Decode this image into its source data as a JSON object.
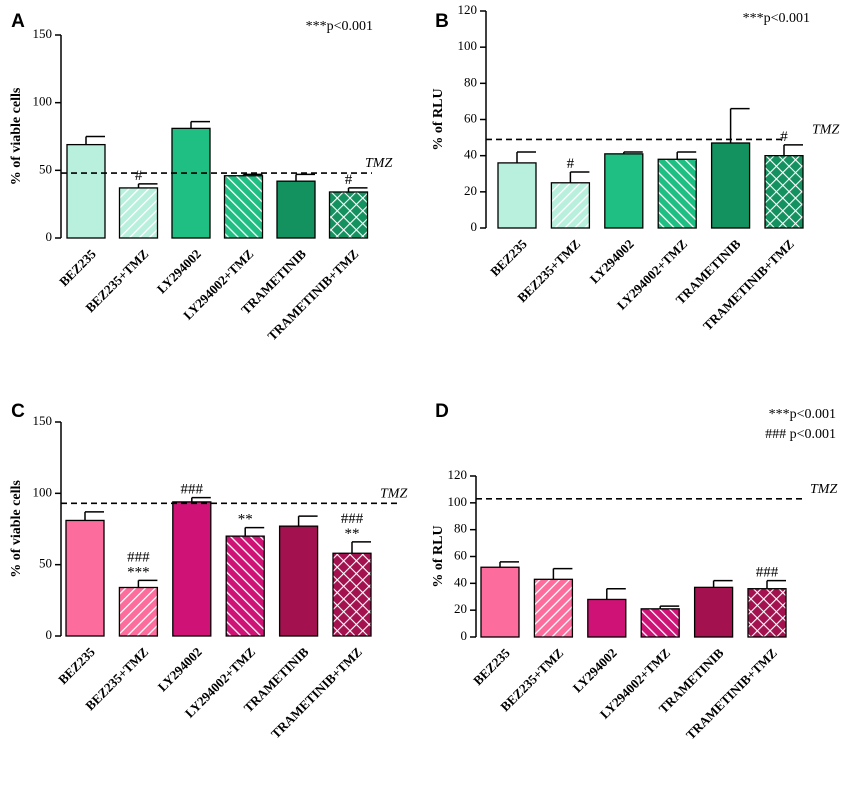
{
  "chart_data": [
    {
      "type": "bar",
      "panel": "A",
      "title": "",
      "xlabel": "",
      "ylabel": "% of viable cells",
      "ylim": [
        0,
        150
      ],
      "yticks": [
        0,
        50,
        100,
        150
      ],
      "categories": [
        "BEZ235",
        "BEZ235+TMZ",
        "LY294002",
        "LY294002+TMZ",
        "TRAMETINIB",
        "TRAMETINIB+TMZ"
      ],
      "values": [
        69,
        37,
        81,
        46,
        42,
        34
      ],
      "errors": [
        6,
        3,
        5,
        1,
        5,
        3
      ],
      "patterns": [
        "solid",
        "diag-left",
        "solid",
        "diag-right",
        "solid",
        "crosshatch"
      ],
      "colors": [
        "#b8f0dd",
        "#b8f0dd",
        "#1fbf83",
        "#1fbf83",
        "#13915f",
        "#13915f"
      ],
      "significance": [
        "",
        "#",
        "",
        "",
        "",
        "#"
      ],
      "reference_line": {
        "label": "TMZ",
        "value": 48
      },
      "annotations": [
        "***p<0.001"
      ]
    },
    {
      "type": "bar",
      "panel": "B",
      "title": "",
      "xlabel": "",
      "ylabel": "% of RLU",
      "ylim": [
        0,
        120
      ],
      "yticks": [
        0,
        20,
        40,
        60,
        80,
        100,
        120
      ],
      "categories": [
        "BEZ235",
        "BEZ235+TMZ",
        "LY294002",
        "LY294002+TMZ",
        "TRAMETINIB",
        "TRAMETINIB+TMZ"
      ],
      "values": [
        36,
        25,
        41,
        38,
        47,
        40
      ],
      "errors": [
        6,
        6,
        1,
        4,
        19,
        6
      ],
      "patterns": [
        "solid",
        "diag-left",
        "solid",
        "diag-right",
        "solid",
        "crosshatch"
      ],
      "colors": [
        "#b8f0dd",
        "#b8f0dd",
        "#1fbf83",
        "#1fbf83",
        "#13915f",
        "#13915f"
      ],
      "significance": [
        "",
        "#",
        "",
        "",
        "",
        "#"
      ],
      "reference_line": {
        "label": "TMZ",
        "value": 49
      },
      "annotations": [
        "***p<0.001"
      ]
    },
    {
      "type": "bar",
      "panel": "C",
      "title": "",
      "xlabel": "",
      "ylabel": "% of viable cells",
      "ylim": [
        0,
        150
      ],
      "yticks": [
        0,
        50,
        100,
        150
      ],
      "categories": [
        "BEZ235",
        "BEZ235+TMZ",
        "LY294002",
        "LY294002+TMZ",
        "TRAMETINIB",
        "TRAMETINIB+TMZ"
      ],
      "values": [
        81,
        34,
        94,
        70,
        77,
        58
      ],
      "errors": [
        6,
        5,
        3,
        6,
        7,
        8
      ],
      "patterns": [
        "solid",
        "diag-left",
        "solid",
        "diag-right",
        "solid",
        "crosshatch"
      ],
      "colors": [
        "#fc6c9c",
        "#fc6c9c",
        "#cf1276",
        "#cf1276",
        "#a3124f",
        "#a3124f"
      ],
      "significance": [
        "",
        "###\n***",
        "###",
        "**",
        "",
        "###\n**"
      ],
      "reference_line": {
        "label": "TMZ",
        "value": 93
      },
      "annotations": []
    },
    {
      "type": "bar",
      "panel": "D",
      "title": "",
      "xlabel": "",
      "ylabel": "% of RLU",
      "ylim": [
        0,
        120
      ],
      "yticks": [
        0,
        20,
        40,
        60,
        80,
        100,
        120
      ],
      "categories": [
        "BEZ235",
        "BEZ235+TMZ",
        "LY294002",
        "LY294002+TMZ",
        "TRAMETINIB",
        "TRAMETINIB+TMZ"
      ],
      "values": [
        52,
        43,
        28,
        21,
        37,
        36
      ],
      "errors": [
        4,
        8,
        8,
        2,
        5,
        6
      ],
      "patterns": [
        "solid",
        "diag-left",
        "solid",
        "diag-right",
        "solid",
        "crosshatch"
      ],
      "colors": [
        "#fc6c9c",
        "#fc6c9c",
        "#cf1276",
        "#cf1276",
        "#a3124f",
        "#a3124f"
      ],
      "significance": [
        "",
        "",
        "",
        "",
        "",
        "###"
      ],
      "reference_line": {
        "label": "TMZ",
        "value": 103
      },
      "annotations": [
        "***p<0.001",
        "### p<0.001"
      ]
    }
  ]
}
